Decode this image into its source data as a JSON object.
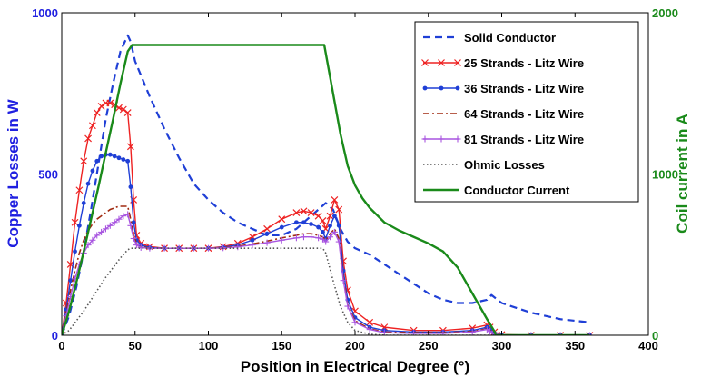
{
  "chart_data": {
    "type": "line",
    "xlabel": "Position in Electrical Degree (°)",
    "ylabel_left": "Copper Losses in W",
    "ylabel_right": "Coil current in A",
    "xlim": [
      0,
      400
    ],
    "ylim_left": [
      0,
      1000
    ],
    "ylim_right": [
      0,
      2000
    ],
    "x_ticks": [
      "0",
      "50",
      "100",
      "150",
      "200",
      "250",
      "300",
      "350",
      "400"
    ],
    "y_left_ticks": [
      "0",
      "500",
      "1000"
    ],
    "y_right_ticks": [
      "0",
      "1000",
      "2000"
    ],
    "grid": false,
    "legend_position": "top-right",
    "colors": {
      "left_axis": "#2020e0",
      "right_axis": "#1a8a1a"
    },
    "series": [
      {
        "name": "Solid Conductor",
        "axis": "left",
        "color": "#1f3fd6",
        "dash": "8,5",
        "width": 2.2,
        "marker": "none",
        "x": [
          0,
          5,
          10,
          15,
          20,
          25,
          30,
          35,
          40,
          45,
          47,
          50,
          60,
          70,
          80,
          90,
          100,
          110,
          120,
          130,
          140,
          150,
          160,
          170,
          180,
          185,
          190,
          195,
          200,
          210,
          220,
          230,
          240,
          250,
          260,
          270,
          280,
          290,
          293,
          300,
          320,
          340,
          360
        ],
        "y": [
          0,
          60,
          150,
          260,
          390,
          530,
          670,
          780,
          880,
          930,
          910,
          850,
          740,
          640,
          550,
          470,
          420,
          380,
          350,
          330,
          310,
          310,
          330,
          370,
          410,
          390,
          330,
          290,
          270,
          250,
          220,
          190,
          160,
          130,
          110,
          100,
          100,
          110,
          125,
          100,
          70,
          50,
          40
        ]
      },
      {
        "name": "25 Strands - Litz Wire",
        "axis": "left",
        "color": "#ee2222",
        "dash": "",
        "width": 1.4,
        "marker": "x",
        "x": [
          0,
          3,
          6,
          9,
          12,
          15,
          18,
          21,
          24,
          27,
          30,
          33,
          36,
          39,
          42,
          45,
          47,
          49,
          51,
          54,
          60,
          70,
          80,
          90,
          100,
          110,
          120,
          130,
          140,
          150,
          160,
          165,
          170,
          175,
          178,
          180,
          183,
          186,
          189,
          192,
          195,
          200,
          210,
          220,
          240,
          260,
          280,
          290,
          292,
          295,
          300,
          320,
          340,
          360
        ],
        "y": [
          0,
          100,
          220,
          350,
          450,
          540,
          610,
          650,
          690,
          710,
          720,
          720,
          715,
          705,
          700,
          690,
          585,
          420,
          310,
          285,
          275,
          270,
          270,
          270,
          270,
          275,
          285,
          305,
          330,
          360,
          380,
          385,
          380,
          370,
          355,
          330,
          370,
          420,
          390,
          230,
          140,
          75,
          40,
          25,
          15,
          15,
          22,
          32,
          25,
          10,
          2,
          0,
          0,
          0
        ]
      },
      {
        "name": "36 Strands - Litz Wire",
        "axis": "left",
        "color": "#1f3fd6",
        "dash": "",
        "width": 1.4,
        "marker": "dot",
        "x": [
          0,
          3,
          6,
          9,
          12,
          15,
          18,
          21,
          24,
          27,
          30,
          33,
          36,
          39,
          42,
          45,
          47,
          49,
          51,
          54,
          60,
          70,
          80,
          90,
          100,
          110,
          120,
          130,
          140,
          150,
          160,
          165,
          170,
          175,
          178,
          180,
          183,
          186,
          189,
          192,
          195,
          200,
          210,
          220,
          240,
          260,
          280,
          290,
          292,
          295,
          300,
          320,
          340,
          360
        ],
        "y": [
          0,
          80,
          170,
          260,
          340,
          410,
          470,
          510,
          540,
          555,
          560,
          560,
          555,
          550,
          545,
          540,
          460,
          350,
          295,
          280,
          272,
          270,
          270,
          270,
          270,
          273,
          280,
          295,
          315,
          335,
          350,
          350,
          345,
          335,
          320,
          300,
          340,
          370,
          340,
          200,
          110,
          55,
          25,
          15,
          10,
          10,
          15,
          25,
          18,
          7,
          1,
          0,
          0,
          0
        ]
      },
      {
        "name": "64 Strands - Litz Wire",
        "axis": "left",
        "color": "#a02a10",
        "dash": "7,3,2,3",
        "width": 1.6,
        "marker": "none",
        "x": [
          0,
          3,
          6,
          9,
          12,
          15,
          18,
          21,
          24,
          27,
          30,
          33,
          36,
          39,
          42,
          45,
          47,
          49,
          51,
          54,
          60,
          70,
          80,
          90,
          100,
          110,
          120,
          130,
          140,
          150,
          160,
          165,
          170,
          175,
          178,
          180,
          183,
          186,
          189,
          192,
          195,
          200,
          210,
          220,
          240,
          260,
          280,
          290,
          292,
          295,
          300,
          320,
          340,
          360
        ],
        "y": [
          0,
          70,
          140,
          200,
          255,
          295,
          325,
          345,
          360,
          370,
          380,
          390,
          395,
          400,
          400,
          400,
          360,
          310,
          285,
          275,
          270,
          270,
          270,
          270,
          270,
          272,
          276,
          283,
          292,
          302,
          310,
          315,
          315,
          310,
          305,
          295,
          315,
          330,
          300,
          180,
          95,
          45,
          20,
          10,
          8,
          8,
          12,
          20,
          15,
          6,
          1,
          0,
          0,
          0
        ]
      },
      {
        "name": "81 Strands - Litz Wire",
        "axis": "left",
        "color": "#a855e0",
        "dash": "",
        "width": 1.4,
        "marker": "plus",
        "x": [
          0,
          3,
          6,
          9,
          12,
          15,
          18,
          21,
          24,
          27,
          30,
          33,
          36,
          39,
          42,
          45,
          47,
          49,
          51,
          54,
          60,
          70,
          80,
          90,
          100,
          110,
          120,
          130,
          140,
          150,
          160,
          165,
          170,
          175,
          178,
          180,
          183,
          186,
          189,
          192,
          195,
          200,
          210,
          220,
          240,
          260,
          280,
          290,
          292,
          295,
          300,
          320,
          340,
          360
        ],
        "y": [
          0,
          60,
          120,
          175,
          220,
          255,
          280,
          295,
          310,
          320,
          330,
          340,
          350,
          360,
          370,
          375,
          340,
          300,
          280,
          272,
          270,
          270,
          270,
          270,
          270,
          271,
          274,
          280,
          287,
          295,
          302,
          305,
          305,
          302,
          298,
          290,
          305,
          320,
          290,
          170,
          90,
          40,
          18,
          8,
          6,
          6,
          10,
          18,
          12,
          5,
          1,
          0,
          0,
          0
        ]
      },
      {
        "name": "Ohmic Losses",
        "axis": "left",
        "color": "#555555",
        "dash": "1.5,2.5",
        "width": 1.6,
        "marker": "none",
        "x": [
          0,
          5,
          10,
          15,
          20,
          25,
          30,
          35,
          40,
          45,
          47,
          50,
          100,
          150,
          178,
          180,
          185,
          190,
          195,
          200,
          210,
          220,
          360
        ],
        "y": [
          0,
          15,
          45,
          75,
          110,
          145,
          180,
          210,
          240,
          265,
          270,
          270,
          270,
          270,
          270,
          255,
          170,
          90,
          40,
          15,
          3,
          0,
          0
        ]
      },
      {
        "name": "Conductor Current",
        "axis": "right",
        "color": "#1a8a1a",
        "dash": "",
        "width": 2.4,
        "marker": "none",
        "x": [
          0,
          5,
          10,
          15,
          20,
          25,
          30,
          35,
          40,
          45,
          48,
          100,
          150,
          179,
          181,
          185,
          190,
          195,
          200,
          205,
          210,
          220,
          230,
          240,
          250,
          260,
          270,
          280,
          290,
          295,
          296,
          300,
          320,
          360
        ],
        "y": [
          0,
          150,
          330,
          520,
          720,
          920,
          1130,
          1340,
          1560,
          1760,
          1800,
          1800,
          1800,
          1800,
          1700,
          1500,
          1250,
          1050,
          930,
          850,
          790,
          700,
          650,
          610,
          570,
          520,
          420,
          260,
          100,
          25,
          0,
          0,
          0,
          0
        ]
      }
    ]
  }
}
